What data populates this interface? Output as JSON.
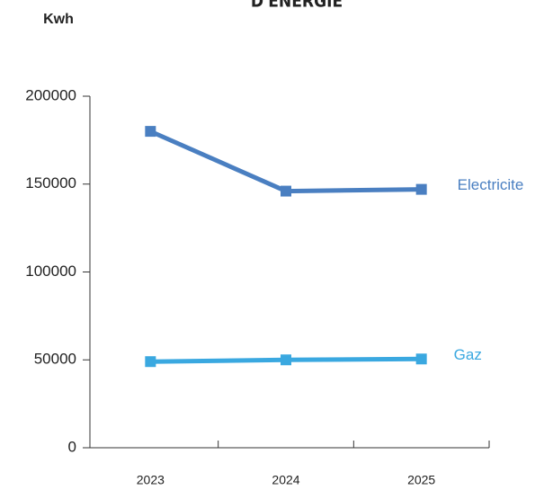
{
  "chart_data": {
    "type": "line",
    "title": "D'ENERGIE",
    "ylabel": "Kwh",
    "categories": [
      "2023",
      "2024",
      "2025"
    ],
    "series": [
      {
        "name": "Electricite",
        "color": "#4a7fc1",
        "values": [
          180000,
          146000,
          147000
        ]
      },
      {
        "name": "Gaz",
        "color": "#3aa8e0",
        "values": [
          49000,
          50000,
          50500
        ]
      }
    ],
    "ylim": [
      0,
      200000
    ],
    "yticks": [
      0,
      50000,
      100000,
      150000,
      200000
    ]
  }
}
